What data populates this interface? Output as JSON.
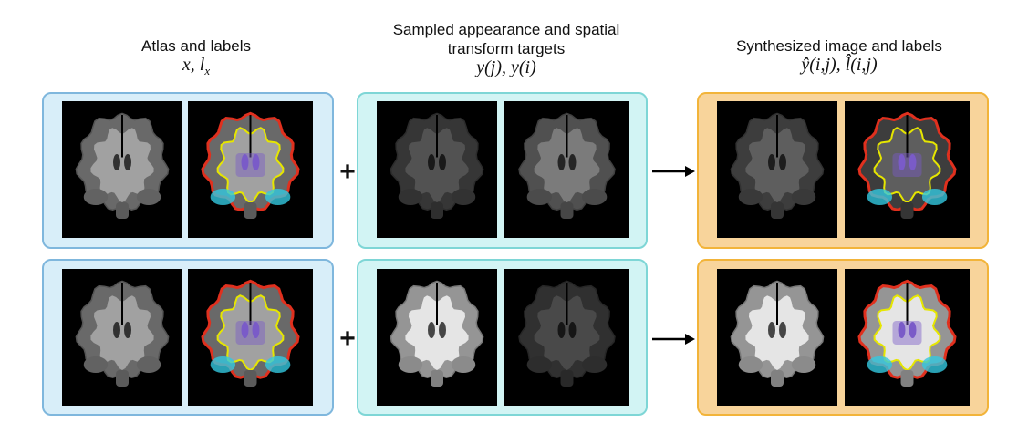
{
  "headers": {
    "atlas": {
      "title": "Atlas and labels",
      "math": "x, l"
    },
    "sampled": {
      "title_line1": "Sampled appearance and spatial",
      "title_line2": "transform targets",
      "math": "y(j), y(i)"
    },
    "synth": {
      "title": "Synthesized image and labels",
      "math": "ŷ(i,j), l̂(i,j)"
    }
  },
  "symbols": {
    "plus": "+"
  },
  "colors": {
    "atlas_panel": "#d8eef9",
    "target_panel": "#d2f4f4",
    "synth_panel": "#f8d49b",
    "label_yellow": "#e6e600",
    "label_red": "#e0301e",
    "label_purple": "#7a5cc8",
    "label_cyan": "#33c8e0"
  },
  "rows": [
    {
      "atlas_image": "brain-scan-atlas",
      "atlas_labels": "brain-label-map",
      "target_a": "brain-scan-dark",
      "target_b": "brain-scan-medium",
      "synth_image": "brain-scan-dark",
      "synth_labels": "brain-label-map-overlay"
    },
    {
      "atlas_image": "brain-scan-atlas",
      "atlas_labels": "brain-label-map",
      "target_a": "brain-scan-bright",
      "target_b": "brain-scan-dark",
      "synth_image": "brain-scan-bright",
      "synth_labels": "brain-label-map-overlay"
    }
  ]
}
